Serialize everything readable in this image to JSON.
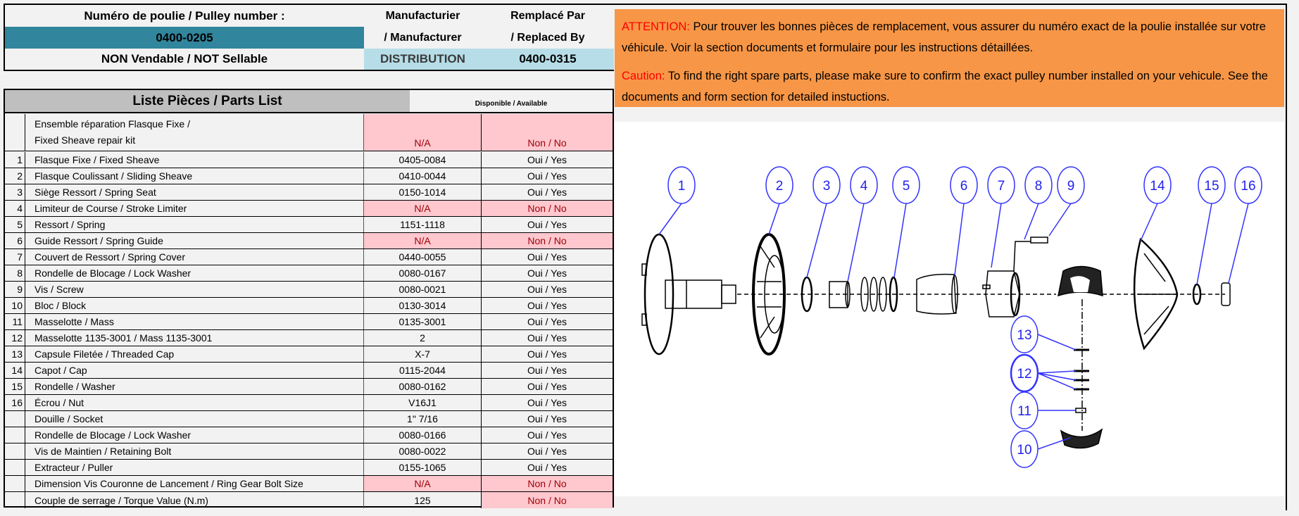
{
  "header": {
    "pulley_label": "Numéro de poulie / Pulley number :",
    "pulley_number": "0400-0205",
    "sellable_status": "NON Vendable / NOT Sellable",
    "manufacturer_label_1": "Manufacturier",
    "manufacturer_label_2": "/ Manufacturer",
    "manufacturer_value": "DISTRIBUTION",
    "replaced_label_1": "Remplacé Par",
    "replaced_label_2": "/ Replaced By",
    "replaced_value": "0400-0315"
  },
  "parts_list": {
    "title": "Liste Pièces / Parts List",
    "available_header": "Disponible / Available",
    "kit": {
      "desc_1": "Ensemble réparation Flasque Fixe /",
      "desc_2": "Fixed Sheave repair kit",
      "part": "N/A",
      "available": "Non / No"
    },
    "rows": [
      {
        "num": "1",
        "desc": "Flasque Fixe / Fixed Sheave",
        "part": "0405-0084",
        "available": "Oui / Yes"
      },
      {
        "num": "2",
        "desc": "Flasque Coulissant / Sliding Sheave",
        "part": "0410-0044",
        "available": "Oui / Yes"
      },
      {
        "num": "3",
        "desc": "Siège Ressort / Spring Seat",
        "part": "0150-1014",
        "available": "Oui / Yes"
      },
      {
        "num": "4",
        "desc": "Limiteur de Course / Stroke Limiter",
        "part": "N/A",
        "available": "Non / No"
      },
      {
        "num": "5",
        "desc": "Ressort / Spring",
        "part": "1151-1118",
        "available": "Oui / Yes"
      },
      {
        "num": "6",
        "desc": "Guide Ressort / Spring Guide",
        "part": "N/A",
        "available": "Non / No"
      },
      {
        "num": "7",
        "desc": "Couvert de Ressort / Spring Cover",
        "part": "0440-0055",
        "available": "Oui / Yes"
      },
      {
        "num": "8",
        "desc": "Rondelle de Blocage / Lock Washer",
        "part": "0080-0167",
        "available": "Oui / Yes"
      },
      {
        "num": "9",
        "desc": "Vis / Screw",
        "part": "0080-0021",
        "available": "Oui / Yes"
      },
      {
        "num": "10",
        "desc": "Bloc / Block",
        "part": "0130-3014",
        "available": "Oui / Yes"
      },
      {
        "num": "11",
        "desc": "Masselotte / Mass",
        "part": "0135-3001",
        "available": "Oui / Yes"
      },
      {
        "num": "12",
        "desc": "Masselotte 1135-3001 / Mass 1135-3001",
        "part": "2",
        "available": "Oui / Yes"
      },
      {
        "num": "13",
        "desc": "Capsule Filetée / Threaded Cap",
        "part": "X-7",
        "available": "Oui / Yes"
      },
      {
        "num": "14",
        "desc": "Capot / Cap",
        "part": "0115-2044",
        "available": "Oui / Yes"
      },
      {
        "num": "15",
        "desc": "Rondelle / Washer",
        "part": "0080-0162",
        "available": "Oui / Yes"
      },
      {
        "num": "16",
        "desc": "Écrou / Nut",
        "part": "V16J1",
        "available": "Oui / Yes"
      },
      {
        "num": "",
        "desc": "Douille / Socket",
        "part": "1\" 7/16",
        "available": "Oui / Yes"
      },
      {
        "num": "",
        "desc": "Rondelle de  Blocage / Lock Washer",
        "part": "0080-0166",
        "available": "Oui / Yes"
      },
      {
        "num": "",
        "desc": "Vis de Maintien / Retaining Bolt",
        "part": "0080-0022",
        "available": "Oui / Yes"
      },
      {
        "num": "",
        "desc": "Extracteur / Puller",
        "part": "0155-1065",
        "available": "Oui / Yes"
      },
      {
        "num": "",
        "desc": "Dimension Vis Couronne de Lancement / Ring Gear Bolt Size",
        "part": "N/A",
        "available": "Non / No"
      },
      {
        "num": "",
        "desc": "Couple de serrage / Torque Value (N.m)",
        "part": "125",
        "available": "Non / No"
      }
    ]
  },
  "notice": {
    "fr_label": "ATTENTION:",
    "fr_text": " Pour trouver les bonnes pièces de remplacement, vous assurer du numéro exact de la poulie installée sur votre véhicule. Voir la section documents et formulaire pour les instructions détaillées.",
    "en_label": "Caution:",
    "en_text": " To find the right spare parts, please make sure to confirm the exact pulley number installed on your vehicule. See the documents and form section for detailed instuctions."
  },
  "diagram": {
    "balloons": [
      "1",
      "2",
      "3",
      "4",
      "5",
      "6",
      "7",
      "8",
      "9",
      "14",
      "15",
      "16",
      "13",
      "12",
      "11",
      "10"
    ]
  },
  "colors": {
    "teal": "#31859c",
    "light_blue": "#b7dee8",
    "orange": "#f79646",
    "unavailable_bg": "#ffc7ce",
    "unavailable_text": "#9c0006",
    "balloon": "#3333ff"
  }
}
